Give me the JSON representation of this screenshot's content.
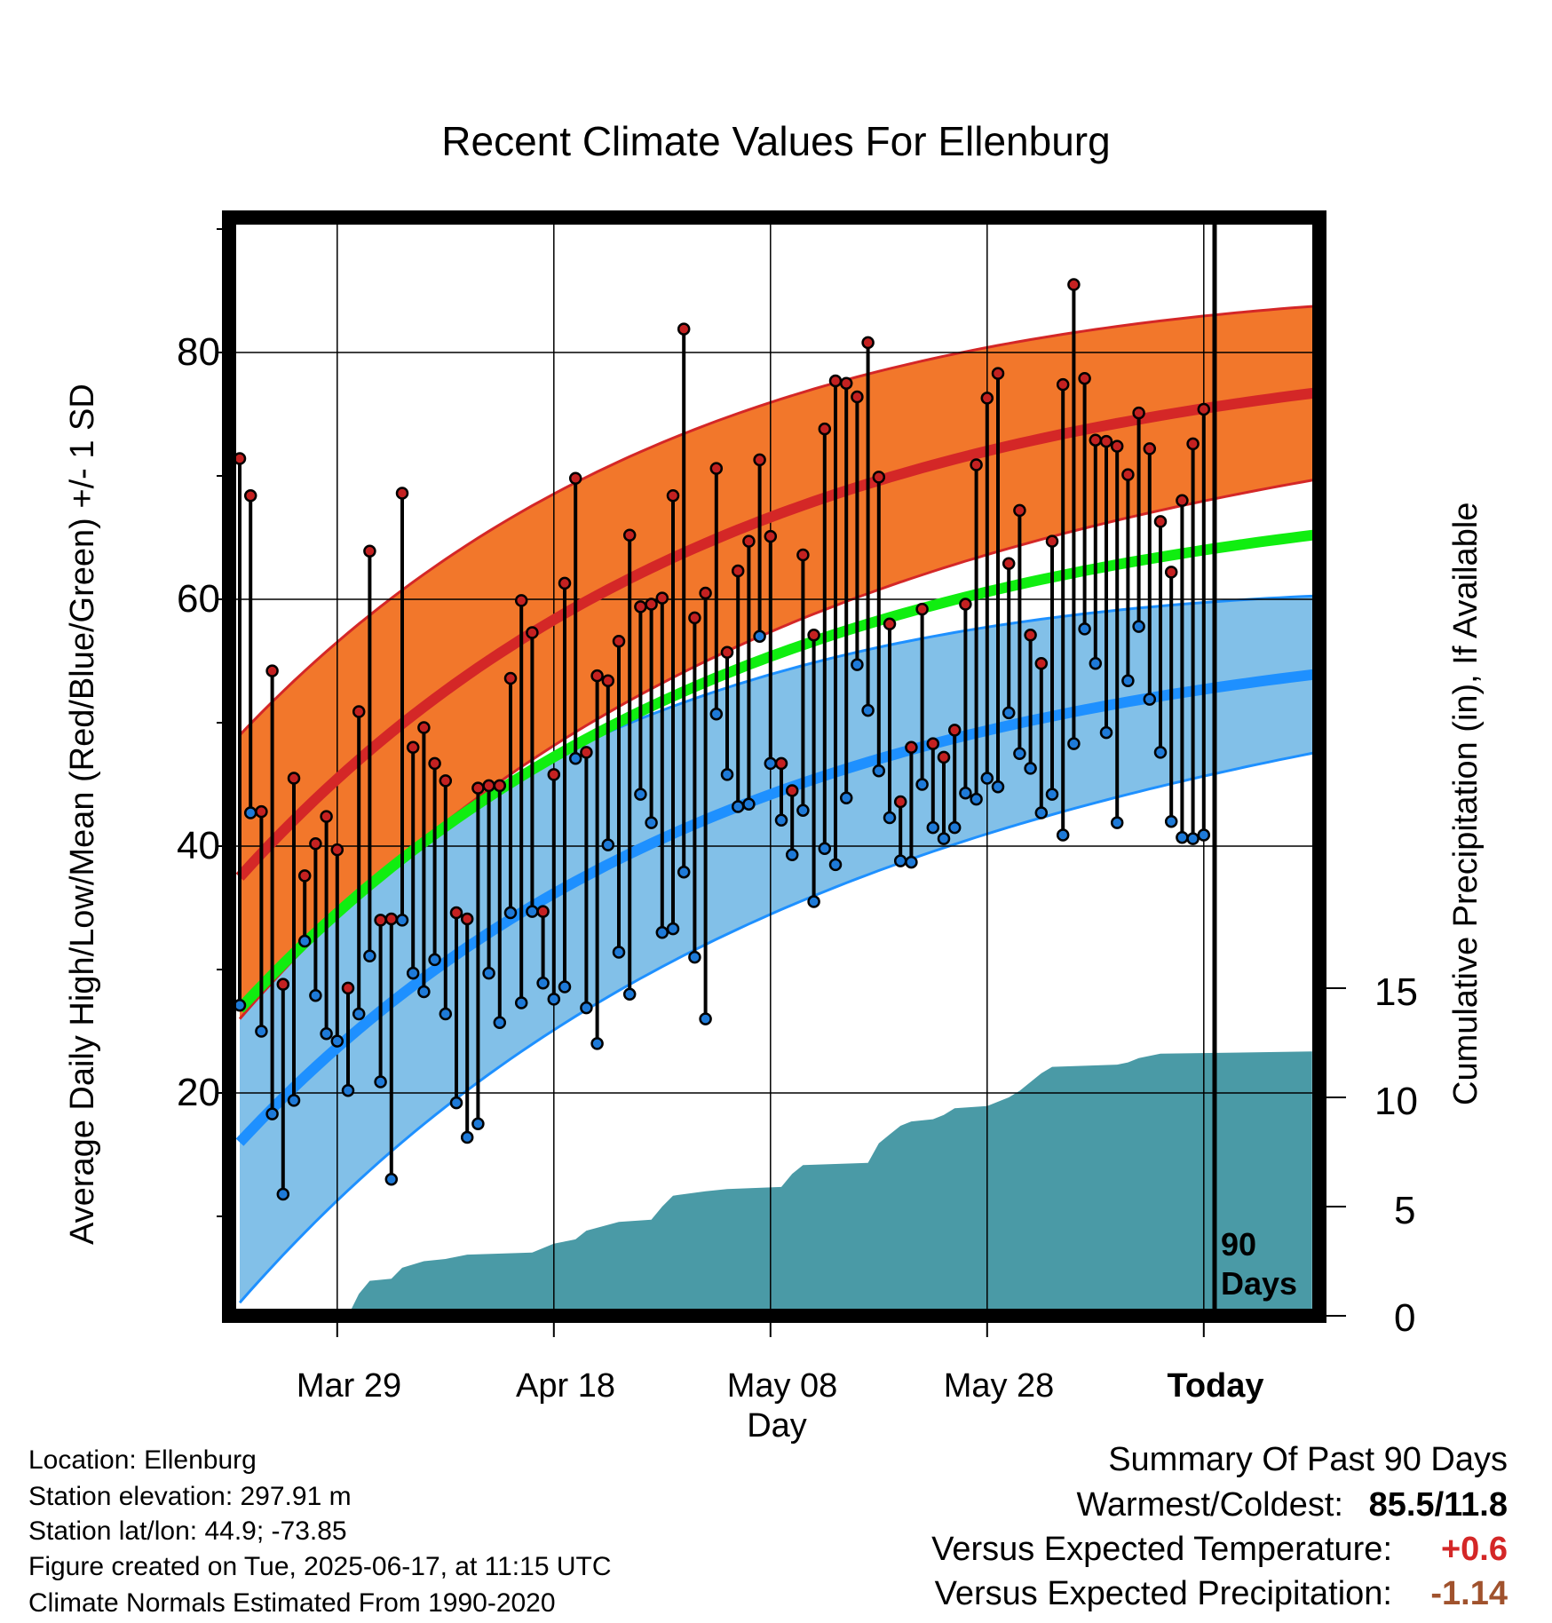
{
  "chart_data": {
    "type": "line",
    "title": "Recent Climate Values For Ellenburg",
    "xlabel": "Day",
    "ylabel": "Average Daily High/Low/Mean (Red/Blue/Green) +/- 1 SD",
    "y2label": "Cumulative Precipitation (in), If Available",
    "x_tick_labels": [
      "Mar 29",
      "Apr 18",
      "May 08",
      "May 28",
      "Today"
    ],
    "y_ticks": [
      20,
      40,
      60,
      80
    ],
    "y2_ticks": [
      0,
      5,
      10,
      15
    ],
    "ylim": [
      1,
      91
    ],
    "y2lim": [
      0,
      50
    ],
    "xlim": [
      1,
      101
    ],
    "today_day": 91,
    "today_label": "90 Days",
    "grid": true,
    "normals": {
      "high_mean": {
        "start": 37.5,
        "end": 76.8
      },
      "high_sd": {
        "start": 11.5,
        "end": 7.0
      },
      "low_mean": {
        "start": 16.0,
        "end": 54.0
      },
      "low_sd": {
        "start": 13.0,
        "end": 6.3
      },
      "mean": {
        "start": 26.8,
        "end": 65.3
      }
    },
    "daily": {
      "highs": [
        71.4,
        68.4,
        42.8,
        54.2,
        28.8,
        45.5,
        37.6,
        40.2,
        42.4,
        39.7,
        28.5,
        50.9,
        63.9,
        34.0,
        34.1,
        68.6,
        48.0,
        49.6,
        46.7,
        45.3,
        34.6,
        34.1,
        44.7,
        44.9,
        44.9,
        53.6,
        59.9,
        57.3,
        34.7,
        45.8,
        61.3,
        69.8,
        47.6,
        53.8,
        53.4,
        56.6,
        65.2,
        59.4,
        59.6,
        60.1,
        68.4,
        81.9,
        58.5,
        60.5,
        70.6,
        55.7,
        62.3,
        64.7,
        71.3,
        65.1,
        46.7,
        44.5,
        63.6,
        57.1,
        73.8,
        77.7,
        77.5,
        76.4,
        80.8,
        69.9,
        58.0,
        43.6,
        48.0,
        59.2,
        48.3,
        47.2,
        49.4,
        59.6,
        70.9,
        76.3,
        78.3,
        62.9,
        67.2,
        57.1,
        54.8,
        64.7,
        77.4,
        85.5,
        77.9,
        72.9,
        72.8,
        72.4,
        70.1,
        75.1,
        72.2,
        66.3,
        62.2,
        68.0,
        72.6,
        75.4
      ],
      "lows": [
        27.1,
        42.7,
        25.0,
        18.3,
        11.8,
        19.4,
        32.3,
        27.9,
        24.8,
        24.2,
        20.2,
        26.4,
        31.1,
        20.9,
        13.0,
        34.0,
        29.7,
        28.2,
        30.8,
        26.4,
        19.2,
        16.4,
        17.5,
        29.7,
        25.7,
        34.6,
        27.3,
        34.7,
        28.9,
        27.6,
        28.6,
        47.1,
        26.9,
        24.0,
        40.1,
        31.4,
        28.0,
        44.2,
        41.9,
        33.0,
        33.3,
        37.9,
        31.0,
        26.0,
        50.7,
        45.8,
        43.2,
        43.4,
        57.0,
        46.7,
        42.1,
        39.3,
        42.9,
        35.5,
        39.8,
        38.5,
        43.9,
        54.7,
        51.0,
        46.1,
        42.3,
        38.8,
        38.7,
        45.0,
        41.5,
        40.6,
        41.5,
        44.3,
        43.8,
        45.5,
        44.8,
        50.8,
        47.5,
        46.3,
        42.7,
        44.2,
        40.9,
        48.3,
        57.6,
        54.8,
        49.2,
        41.9,
        53.4,
        57.8,
        51.9,
        47.6,
        42.0,
        40.7,
        40.6,
        40.9
      ]
    },
    "precip_steps": [
      [
        1,
        0
      ],
      [
        11,
        0
      ],
      [
        12,
        1.0
      ],
      [
        13,
        1.6
      ],
      [
        15,
        1.7
      ],
      [
        16,
        2.2
      ],
      [
        18,
        2.5
      ],
      [
        20,
        2.6
      ],
      [
        22,
        2.8
      ],
      [
        28,
        2.9
      ],
      [
        30,
        3.3
      ],
      [
        32,
        3.5
      ],
      [
        33,
        3.9
      ],
      [
        36,
        4.3
      ],
      [
        39,
        4.4
      ],
      [
        40,
        5.0
      ],
      [
        41,
        5.5
      ],
      [
        44,
        5.7
      ],
      [
        46,
        5.8
      ],
      [
        51,
        5.9
      ],
      [
        52,
        6.5
      ],
      [
        53,
        6.9
      ],
      [
        59,
        7.0
      ],
      [
        60,
        7.9
      ],
      [
        61,
        8.3
      ],
      [
        62,
        8.7
      ],
      [
        63,
        8.9
      ],
      [
        65,
        9.0
      ],
      [
        66,
        9.2
      ],
      [
        67,
        9.5
      ],
      [
        70,
        9.6
      ],
      [
        72,
        10.0
      ],
      [
        73,
        10.3
      ],
      [
        74,
        10.7
      ],
      [
        75,
        11.1
      ],
      [
        76,
        11.4
      ],
      [
        82,
        11.5
      ],
      [
        83,
        11.6
      ],
      [
        84,
        11.8
      ],
      [
        85,
        11.9
      ],
      [
        86,
        12.0
      ],
      [
        100,
        12.1
      ]
    ],
    "colors": {
      "high_band": "#f2772b",
      "high_line": "#d42727",
      "low_band": "#82c0e8",
      "low_line": "#1e90ff",
      "mean_line": "#10ee10",
      "precip": "#4a9aa6",
      "high_dot": "#c42121",
      "low_dot": "#1e7ad8"
    }
  },
  "footer": {
    "location": "Location: Ellenburg",
    "elevation": "Station elevation: 297.91 m",
    "latlon": "Station lat/lon: 44.9; -73.85",
    "created": "Figure created on Tue, 2025-06-17, at 11:15 UTC",
    "normals": "Climate Normals Estimated From 1990-2020"
  },
  "summary": {
    "heading": "Summary Of Past 90 Days",
    "warm_cold_label": "Warmest/Coldest:",
    "warm_cold_value": "85.5/11.8",
    "temp_label": "Versus Expected Temperature:",
    "temp_value": "+0.6",
    "temp_color": "#d42727",
    "precip_label": "Versus Expected Precipitation:",
    "precip_value": "-1.14",
    "precip_color": "#a0522d"
  }
}
